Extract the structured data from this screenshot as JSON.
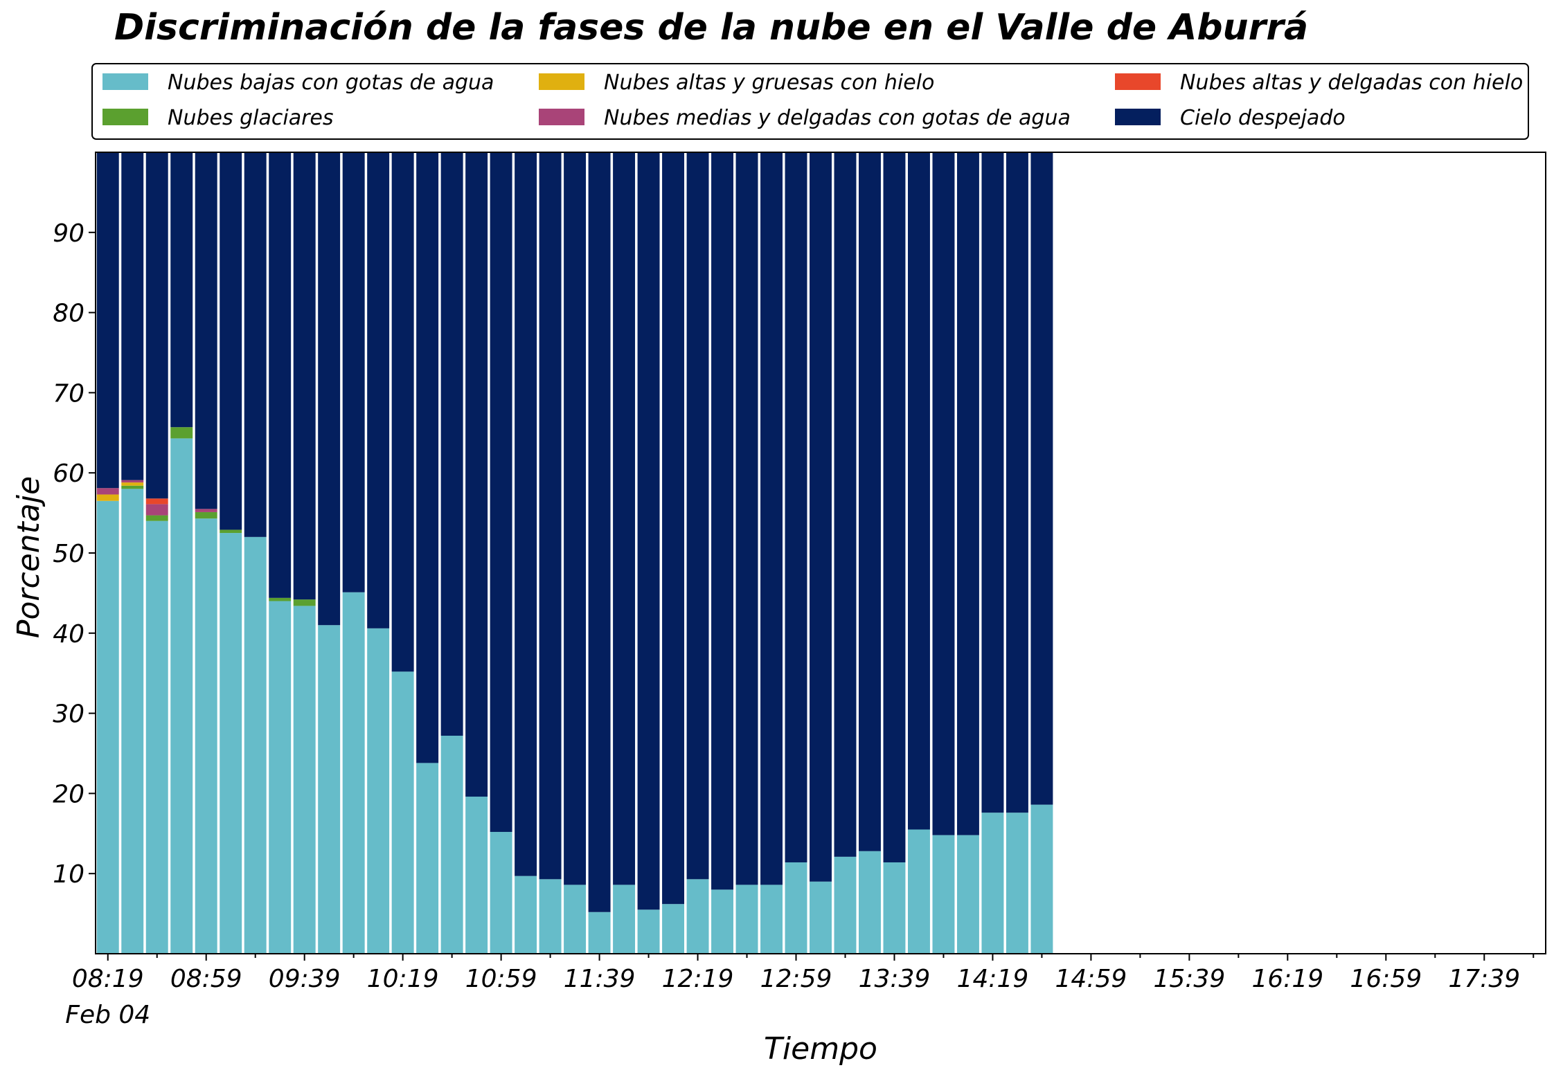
{
  "chart_data": {
    "type": "bar",
    "stacked": true,
    "title": "Discriminación de la fases de la nube en el Valle de Aburrá",
    "xlabel": "Tiempo",
    "ylabel": "Porcentaje",
    "ylim": [
      0,
      100
    ],
    "yticks": [
      10,
      20,
      30,
      40,
      50,
      60,
      70,
      80,
      90
    ],
    "x_start_minutes": 499,
    "x_step_minutes": 10,
    "x_range_minutes": [
      494,
      1084
    ],
    "xtick_labels": [
      "08:19",
      "08:59",
      "09:39",
      "10:19",
      "10:59",
      "11:39",
      "12:19",
      "12:59",
      "13:39",
      "14:19",
      "14:59",
      "15:39",
      "16:19",
      "16:59",
      "17:39"
    ],
    "xtick_date": "Feb 04",
    "legend_position": "top",
    "series": [
      {
        "name": "Nubes bajas con gotas de agua",
        "color": "#66BCC9",
        "values": [
          56.5,
          58,
          54,
          64.3,
          54.3,
          52.5,
          52,
          44,
          43.4,
          41,
          45.1,
          40.6,
          35.2,
          23.8,
          27.2,
          19.6,
          15.2,
          9.7,
          9.3,
          8.6,
          5.2,
          8.6,
          5.5,
          6.2,
          9.3,
          8,
          8.6,
          8.6,
          11.4,
          9,
          12.1,
          12.8,
          11.4,
          15.5,
          14.8,
          14.8,
          17.6,
          17.6,
          18.6
        ]
      },
      {
        "name": "Nubes glaciares",
        "color": "#5BA02F",
        "values": [
          0,
          0.4,
          0.7,
          1.4,
          0.8,
          0.4,
          0,
          0.4,
          0.8,
          0,
          0,
          0,
          0,
          0,
          0,
          0,
          0,
          0,
          0,
          0,
          0,
          0,
          0,
          0,
          0,
          0,
          0,
          0,
          0,
          0,
          0,
          0,
          0,
          0,
          0,
          0,
          0,
          0,
          0
        ]
      },
      {
        "name": "Nubes altas y gruesas con hielo",
        "color": "#E0B010",
        "values": [
          0.8,
          0.4,
          0,
          0,
          0,
          0,
          0,
          0,
          0,
          0,
          0,
          0,
          0,
          0,
          0,
          0,
          0,
          0,
          0,
          0,
          0,
          0,
          0,
          0,
          0,
          0,
          0,
          0,
          0,
          0,
          0,
          0,
          0,
          0,
          0,
          0,
          0,
          0,
          0
        ]
      },
      {
        "name": "Nubes medias y delgadas con gotas de agua",
        "color": "#A94478",
        "values": [
          0.8,
          0.3,
          1.4,
          0,
          0.4,
          0,
          0,
          0,
          0,
          0,
          0,
          0,
          0,
          0,
          0,
          0,
          0,
          0,
          0,
          0,
          0,
          0,
          0,
          0,
          0,
          0,
          0,
          0,
          0,
          0,
          0,
          0,
          0,
          0,
          0,
          0,
          0,
          0,
          0
        ]
      },
      {
        "name": "Nubes altas y delgadas con hielo",
        "color": "#E8472B",
        "values": [
          0,
          0,
          0.7,
          0,
          0,
          0,
          0,
          0,
          0,
          0,
          0,
          0,
          0,
          0,
          0,
          0,
          0,
          0,
          0,
          0,
          0,
          0,
          0,
          0,
          0,
          0,
          0,
          0,
          0,
          0,
          0,
          0,
          0,
          0,
          0,
          0,
          0,
          0,
          0
        ]
      },
      {
        "name": "Cielo despejado",
        "color": "#041F5E",
        "values": [
          41.9,
          40.9,
          43.2,
          34.3,
          44.5,
          47.1,
          48,
          55.6,
          55.8,
          59,
          54.9,
          59.4,
          64.8,
          76.2,
          72.8,
          80.4,
          84.8,
          90.3,
          90.7,
          91.4,
          94.8,
          91.4,
          94.5,
          93.8,
          90.7,
          92,
          91.4,
          91.4,
          88.6,
          91,
          87.9,
          87.2,
          88.6,
          84.5,
          85.2,
          85.2,
          82.4,
          82.4,
          81.4
        ]
      }
    ],
    "legend_order": [
      "Nubes bajas con gotas de agua",
      "Nubes glaciares",
      "Nubes altas y gruesas con hielo",
      "Nubes medias y delgadas con gotas de agua",
      "Nubes altas y delgadas con hielo",
      "Cielo despejado"
    ]
  }
}
